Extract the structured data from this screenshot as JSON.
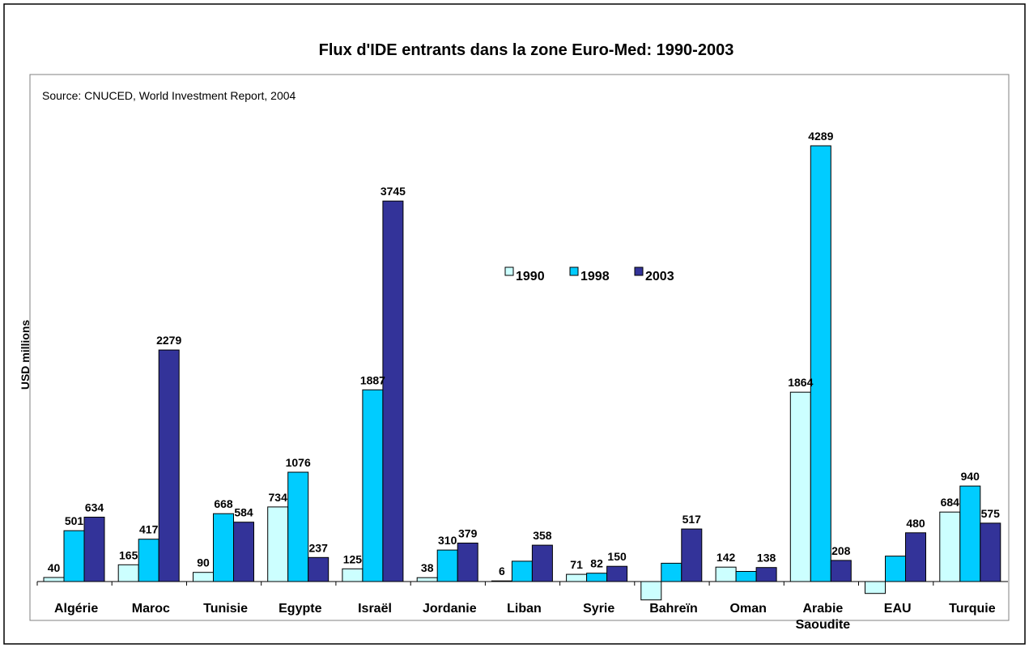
{
  "chart_data": {
    "type": "bar",
    "title": "Flux d'IDE entrants dans la zone Euro-Med: 1990-2003",
    "source": "Source: CNUCED, World Investment Report, 2004",
    "ylabel": "USD millions",
    "xlabel": "",
    "ylim": [
      -400,
      4800
    ],
    "legend_position": "center",
    "grid": false,
    "categories": [
      "Algérie",
      "Maroc",
      "Tunisie",
      "Egypte",
      "Israël",
      "Jordanie",
      "Liban",
      "Syrie",
      "Bahreïn",
      "Oman",
      "Arabie Saoudite",
      "EAU",
      "Turquie"
    ],
    "series": [
      {
        "name": "1990",
        "color": "#ccffff",
        "values": [
          40,
          165,
          90,
          734,
          125,
          38,
          6,
          71,
          -181,
          142,
          1864,
          -117,
          684
        ],
        "labels": [
          "40",
          "165",
          "90",
          "734",
          "125",
          "38",
          "6",
          "71",
          "",
          "142",
          "1864",
          "",
          "684"
        ]
      },
      {
        "name": "1998",
        "color": "#00ccff",
        "values": [
          501,
          417,
          668,
          1076,
          1887,
          310,
          200,
          82,
          180,
          100,
          4289,
          250,
          940
        ],
        "labels": [
          "501",
          "417",
          "668",
          "1076",
          "1887",
          "310",
          "",
          "82",
          "",
          "",
          "4289",
          "",
          "940"
        ]
      },
      {
        "name": "2003",
        "color": "#333399",
        "values": [
          634,
          2279,
          584,
          237,
          3745,
          379,
          358,
          150,
          517,
          138,
          208,
          480,
          575
        ],
        "labels": [
          "634",
          "2279",
          "584",
          "237",
          "3745",
          "379",
          "358",
          "150",
          "517",
          "138",
          "208",
          "480",
          "575"
        ]
      }
    ]
  }
}
